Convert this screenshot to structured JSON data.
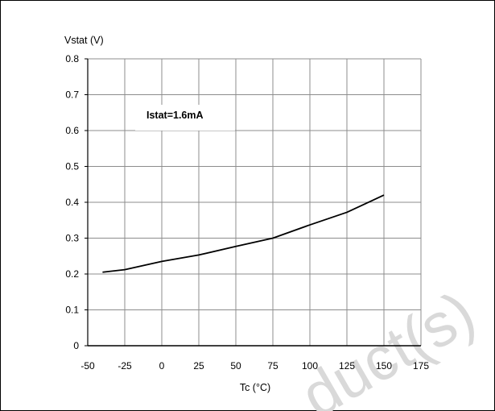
{
  "chart_data": {
    "type": "line",
    "title": "",
    "xlabel": "Tc (°C)",
    "ylabel": "Vstat (V)",
    "xlim": [
      -50,
      175
    ],
    "ylim": [
      0,
      0.8
    ],
    "x_ticks": [
      "-50",
      "-25",
      "0",
      "25",
      "50",
      "75",
      "100",
      "125",
      "150",
      "175"
    ],
    "y_ticks": [
      "0",
      "0.1",
      "0.2",
      "0.3",
      "0.4",
      "0.5",
      "0.6",
      "0.7",
      "0.8"
    ],
    "grid": true,
    "annotation": "Istat=1.6mA",
    "series": [
      {
        "x": [
          -40,
          -25,
          0,
          25,
          50,
          75,
          100,
          125,
          150
        ],
        "y": [
          0.205,
          0.212,
          0.235,
          0.253,
          0.277,
          0.3,
          0.337,
          0.372,
          0.42
        ]
      }
    ]
  },
  "watermark": "duct(s)"
}
